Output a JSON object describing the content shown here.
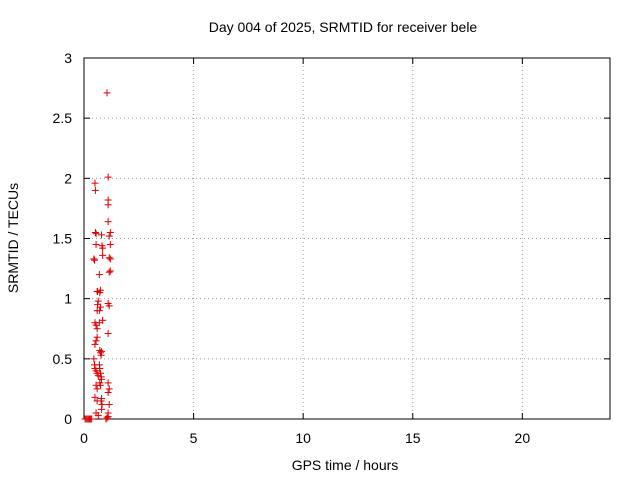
{
  "chart_data": {
    "type": "scatter",
    "title": "Day 004 of 2025, SRMTID for receiver bele",
    "xlabel": "GPS time / hours",
    "ylabel": "SRMTID / TECUs",
    "xlim": [
      0,
      24
    ],
    "ylim": [
      0,
      3
    ],
    "xticks": [
      0,
      5,
      10,
      15,
      20
    ],
    "xtick_labels": [
      "0",
      "5",
      "10",
      "15",
      "20"
    ],
    "yticks": [
      0,
      0.5,
      1,
      1.5,
      2,
      2.5,
      3
    ],
    "ytick_labels": [
      "0",
      "0.5",
      "1",
      "1.5",
      "2",
      "2.5",
      "3"
    ],
    "grid": true,
    "marker": "+",
    "color": "#dd0000",
    "series": [
      {
        "name": "SRMTID",
        "points": [
          [
            0.05,
            0.0
          ],
          [
            0.1,
            0.0
          ],
          [
            0.15,
            0.0
          ],
          [
            0.2,
            0.0
          ],
          [
            0.25,
            0.0
          ],
          [
            0.3,
            0.0
          ],
          [
            0.35,
            0.0
          ],
          [
            0.45,
            1.33
          ],
          [
            0.48,
            1.32
          ],
          [
            0.5,
            1.96
          ],
          [
            0.52,
            1.9
          ],
          [
            0.52,
            1.55
          ],
          [
            0.55,
            1.54
          ],
          [
            0.55,
            1.45
          ],
          [
            0.6,
            1.06
          ],
          [
            0.62,
            1.06
          ],
          [
            0.5,
            0.8
          ],
          [
            0.55,
            0.78
          ],
          [
            0.6,
            0.75
          ],
          [
            0.5,
            0.62
          ],
          [
            0.55,
            0.65
          ],
          [
            0.6,
            0.68
          ],
          [
            0.45,
            0.5
          ],
          [
            0.48,
            0.45
          ],
          [
            0.5,
            0.42
          ],
          [
            0.55,
            0.4
          ],
          [
            0.6,
            0.38
          ],
          [
            0.65,
            0.36
          ],
          [
            0.55,
            0.28
          ],
          [
            0.6,
            0.25
          ],
          [
            0.5,
            0.18
          ],
          [
            0.6,
            0.15
          ],
          [
            0.55,
            0.05
          ],
          [
            0.65,
            0.03
          ],
          [
            0.6,
            0.9
          ],
          [
            0.62,
            0.95
          ],
          [
            0.65,
            0.98
          ],
          [
            0.7,
            1.2
          ],
          [
            0.72,
            1.05
          ],
          [
            0.75,
            1.07
          ],
          [
            0.7,
            0.9
          ],
          [
            0.75,
            0.93
          ],
          [
            0.7,
            0.8
          ],
          [
            0.72,
            0.57
          ],
          [
            0.75,
            0.55
          ],
          [
            0.78,
            0.53
          ],
          [
            0.8,
            0.56
          ],
          [
            0.7,
            0.45
          ],
          [
            0.72,
            0.42
          ],
          [
            0.75,
            0.38
          ],
          [
            0.78,
            0.35
          ],
          [
            0.8,
            0.33
          ],
          [
            0.72,
            0.3
          ],
          [
            0.75,
            0.28
          ],
          [
            0.8,
            0.17
          ],
          [
            0.78,
            0.15
          ],
          [
            0.82,
            0.12
          ],
          [
            0.8,
            0.08
          ],
          [
            0.8,
            1.53
          ],
          [
            0.82,
            1.44
          ],
          [
            0.85,
            1.42
          ],
          [
            0.85,
            1.36
          ],
          [
            0.85,
            0.82
          ],
          [
            1.0,
            0.0
          ],
          [
            1.05,
            0.01
          ],
          [
            1.1,
            0.02
          ],
          [
            1.05,
            2.71
          ],
          [
            1.1,
            2.01
          ],
          [
            1.1,
            1.82
          ],
          [
            1.1,
            1.78
          ],
          [
            1.1,
            1.64
          ],
          [
            1.15,
            1.52
          ],
          [
            1.2,
            1.55
          ],
          [
            1.2,
            1.45
          ],
          [
            1.15,
            1.34
          ],
          [
            1.2,
            1.33
          ],
          [
            1.15,
            1.22
          ],
          [
            1.2,
            1.23
          ],
          [
            1.1,
            0.96
          ],
          [
            1.15,
            0.94
          ],
          [
            1.1,
            0.71
          ],
          [
            1.1,
            0.3
          ],
          [
            1.15,
            0.25
          ],
          [
            1.1,
            0.22
          ],
          [
            1.15,
            0.12
          ],
          [
            1.1,
            0.05
          ]
        ]
      }
    ]
  }
}
